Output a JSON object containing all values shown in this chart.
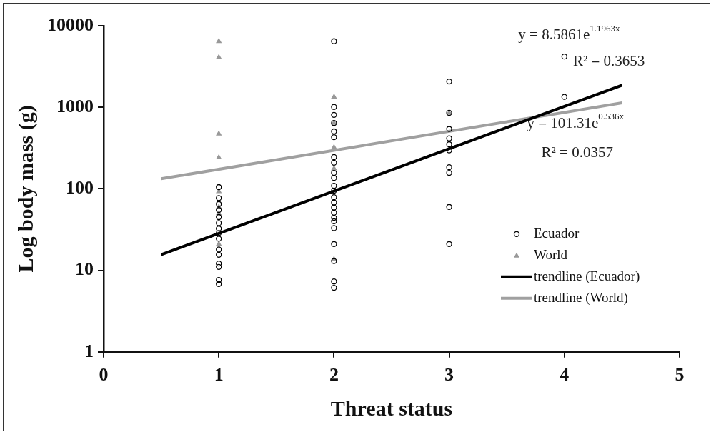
{
  "chart_data": {
    "type": "scatter",
    "xlabel": "Threat status",
    "ylabel": "Log body mass (g)",
    "xlim": [
      0,
      5
    ],
    "xticks": [
      0,
      1,
      2,
      3,
      4,
      5
    ],
    "ylim": [
      1,
      10000
    ],
    "yticks": [
      1,
      10,
      100,
      1000,
      10000
    ],
    "log": "y",
    "grid": false,
    "legend": "bottom right",
    "annotations": [
      "y = 8.5861e$^{1.1963x}$",
      "R² = 0.3653",
      "y = 101.31e$^{0.536x}$",
      "R² = 0.0357"
    ],
    "series": [
      {
        "name": "Ecuador",
        "type": "scatter",
        "marker": "circle",
        "color": "#000000",
        "x": [
          1,
          1,
          1,
          1,
          1,
          1,
          1,
          1,
          1,
          1,
          1,
          1,
          1,
          1,
          1,
          2,
          2,
          2,
          2,
          2,
          2,
          2,
          2,
          2,
          2,
          2,
          2,
          2,
          2,
          2,
          2,
          2,
          2,
          2,
          2,
          2,
          2,
          2,
          3,
          3,
          3,
          3,
          3,
          3,
          3,
          3,
          3,
          3,
          4,
          4
        ],
        "values": [
          105,
          77,
          65,
          55,
          45,
          38,
          32.5,
          28.7,
          24.4,
          18,
          15.5,
          12.1,
          11,
          7.6,
          6.8,
          6450,
          1010,
          807,
          641,
          506,
          430,
          245,
          209,
          157,
          136,
          109,
          95,
          79,
          68,
          59,
          51,
          44,
          40,
          33,
          21,
          13,
          7.3,
          6.1,
          2070,
          855,
          543,
          416,
          352,
          296,
          184,
          157,
          60,
          21,
          4190,
          1340
        ]
      },
      {
        "name": "World",
        "type": "scatter",
        "marker": "triangle",
        "color": "#999999",
        "x": [
          1,
          1,
          1,
          1,
          1,
          1,
          1,
          1,
          2,
          2,
          2,
          2,
          2,
          3
        ],
        "values": [
          6450,
          4100,
          473,
          242,
          93,
          60,
          50,
          21,
          1340,
          641,
          323,
          177,
          13.7,
          855
        ]
      },
      {
        "name": "trendline (Ecuador)",
        "type": "line",
        "marker": "none",
        "color": "#000000",
        "x": [
          0.5,
          4.5
        ],
        "values": [
          15.6,
          1864
        ]
      },
      {
        "name": "trendline (World)",
        "type": "line",
        "marker": "none",
        "color": "#a0a0a0",
        "x": [
          0.5,
          4.5
        ],
        "values": [
          132.8,
          1132
        ]
      }
    ]
  }
}
